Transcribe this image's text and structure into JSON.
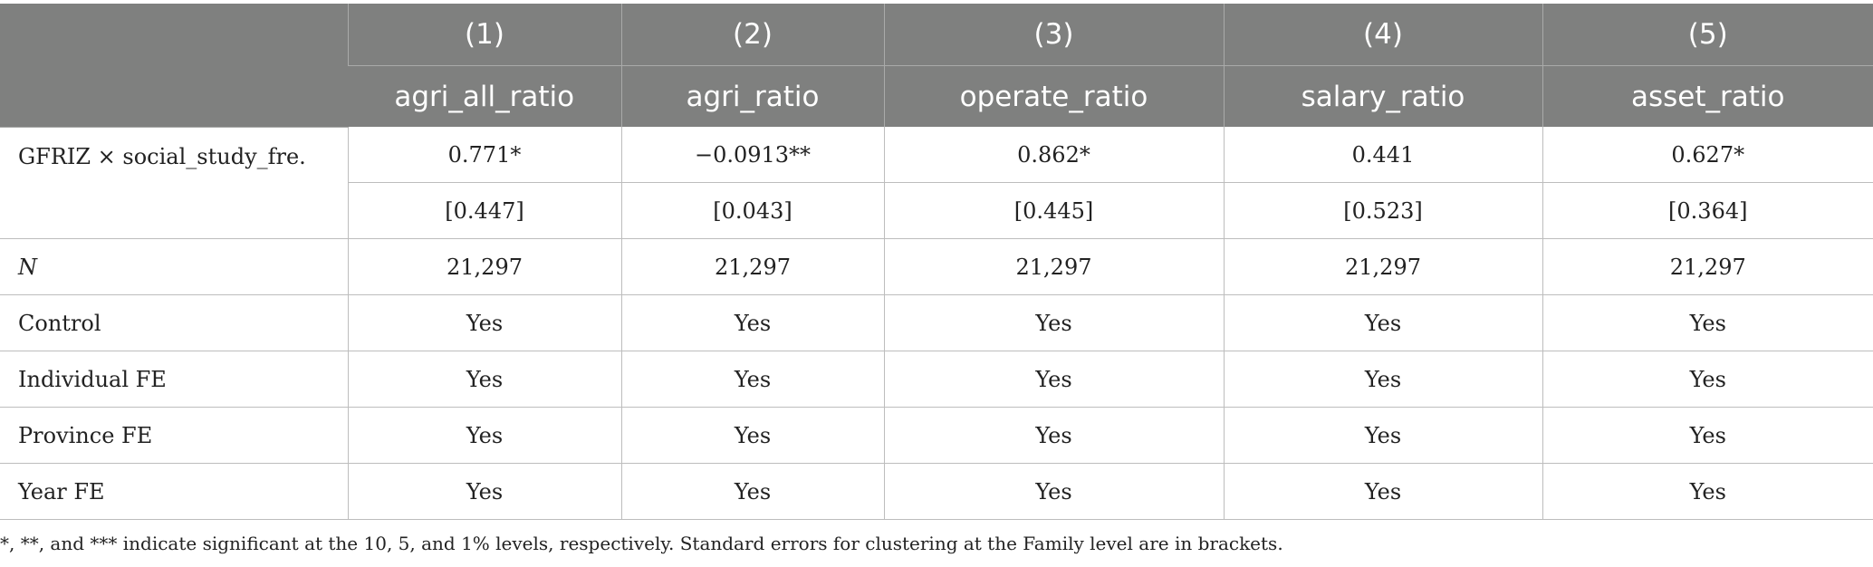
{
  "header": {
    "numbers": [
      "(1)",
      "(2)",
      "(3)",
      "(4)",
      "(5)"
    ],
    "variables": [
      "agri_all_ratio",
      "agri_ratio",
      "operate_ratio",
      "salary_ratio",
      "asset_ratio"
    ]
  },
  "rows": {
    "coef": {
      "label": "GFRIZ × social_study_fre.",
      "values": [
        "0.771*",
        "−0.0913**",
        "0.862*",
        "0.441",
        "0.627*"
      ],
      "se": [
        "[0.447]",
        "[0.043]",
        "[0.445]",
        "[0.523]",
        "[0.364]"
      ]
    },
    "n": {
      "label": "N",
      "values": [
        "21,297",
        "21,297",
        "21,297",
        "21,297",
        "21,297"
      ]
    },
    "control": {
      "label": "Control",
      "values": [
        "Yes",
        "Yes",
        "Yes",
        "Yes",
        "Yes"
      ]
    },
    "individual_fe": {
      "label": "Individual FE",
      "values": [
        "Yes",
        "Yes",
        "Yes",
        "Yes",
        "Yes"
      ]
    },
    "province_fe": {
      "label": "Province FE",
      "values": [
        "Yes",
        "Yes",
        "Yes",
        "Yes",
        "Yes"
      ]
    },
    "year_fe": {
      "label": "Year FE",
      "values": [
        "Yes",
        "Yes",
        "Yes",
        "Yes",
        "Yes"
      ]
    }
  },
  "note": "*, **, and *** indicate significant at the 10, 5, and 1% levels, respectively. Standard errors for clustering at the Family level are in brackets."
}
